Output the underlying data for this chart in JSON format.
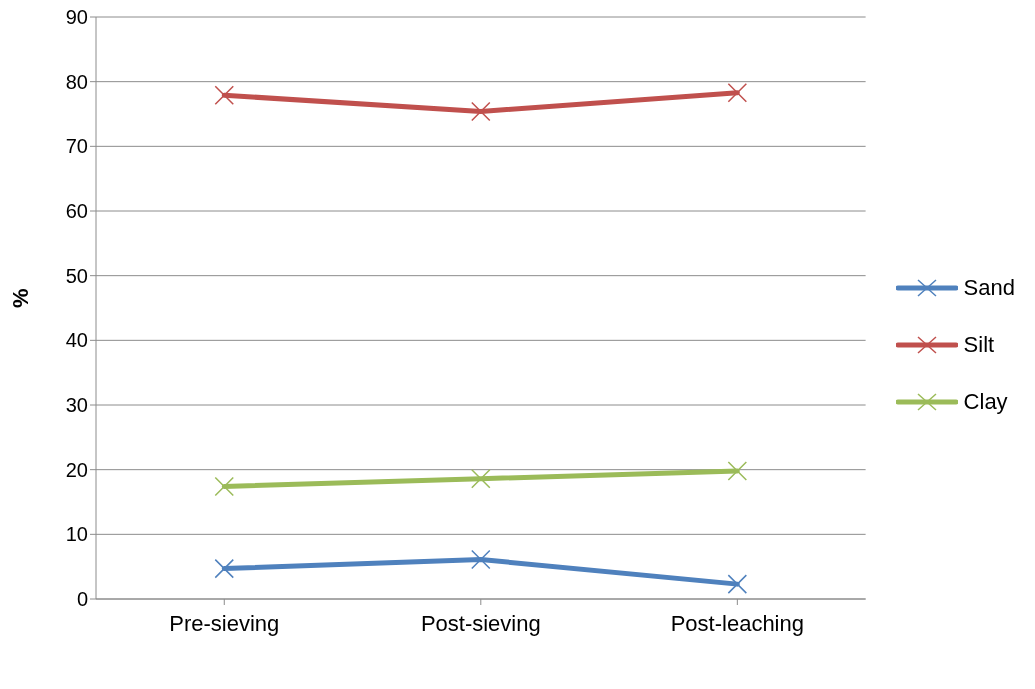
{
  "chart_data": {
    "type": "line",
    "ylabel": "%",
    "categories": [
      "Pre-sieving",
      "Post-sieving",
      "Post-leaching"
    ],
    "series": [
      {
        "name": "Sand",
        "color": "#4f81bd",
        "values": [
          4.7,
          6.1,
          2.3
        ]
      },
      {
        "name": "Silt",
        "color": "#c0504d",
        "values": [
          77.9,
          75.4,
          78.3
        ]
      },
      {
        "name": "Clay",
        "color": "#9bbb59",
        "values": [
          17.4,
          18.6,
          19.8
        ]
      }
    ],
    "ylim": [
      0,
      90
    ],
    "yticks": [
      0,
      10,
      20,
      30,
      40,
      50,
      60,
      70,
      80,
      90
    ],
    "grid": "y",
    "legend": "right",
    "marker": "cross",
    "line_style": "solid"
  }
}
